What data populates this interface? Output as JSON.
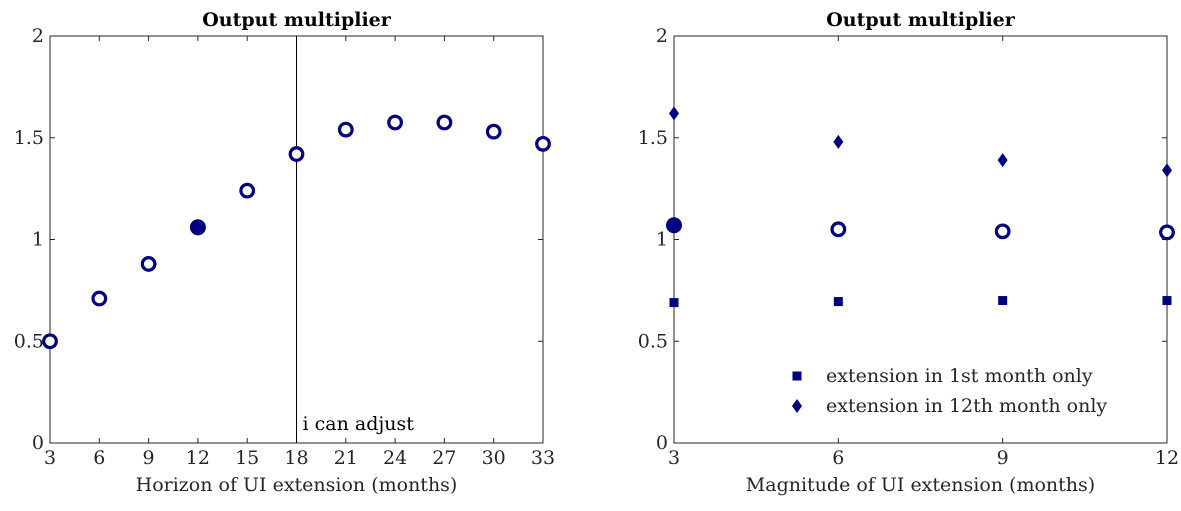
{
  "marker_color": "#000080",
  "chart_data": [
    {
      "type": "scatter",
      "title": "Output multiplier",
      "xlabel": "Horizon of UI extension (months)",
      "ylabel": "",
      "xlim": [
        3,
        33
      ],
      "ylim": [
        0,
        2
      ],
      "xticks": [
        "3",
        "6",
        "9",
        "12",
        "15",
        "18",
        "21",
        "24",
        "27",
        "30",
        "33"
      ],
      "yticks": [
        "0",
        "0.5",
        "1",
        "1.5",
        "2"
      ],
      "grid": false,
      "series": [
        {
          "marker": "hollow-circle",
          "x": [
            3,
            6,
            9,
            15,
            18,
            21,
            24,
            27,
            30,
            33
          ],
          "y": [
            0.5,
            0.71,
            0.88,
            1.24,
            1.42,
            1.54,
            1.575,
            1.575,
            1.53,
            1.47
          ]
        },
        {
          "marker": "filled-circle",
          "x": [
            12
          ],
          "y": [
            1.06
          ]
        }
      ],
      "vline": {
        "x": 18,
        "label": "i can adjust"
      }
    },
    {
      "type": "scatter",
      "title": "Output multiplier",
      "xlabel": "Magnitude of UI extension (months)",
      "ylabel": "",
      "xlim": [
        3,
        12
      ],
      "ylim": [
        0,
        2
      ],
      "xticks": [
        "3",
        "6",
        "9",
        "12"
      ],
      "yticks": [
        "0",
        "0.5",
        "1",
        "1.5",
        "2"
      ],
      "grid": false,
      "legend_position": "bottom-right",
      "series": [
        {
          "marker": "filled-circle",
          "x": [
            3
          ],
          "y": [
            1.07
          ]
        },
        {
          "marker": "hollow-circle",
          "x": [
            6,
            9,
            12
          ],
          "y": [
            1.05,
            1.04,
            1.035
          ]
        },
        {
          "name": "extension in 1st month only",
          "marker": "square",
          "x": [
            3,
            6,
            9,
            12
          ],
          "y": [
            0.69,
            0.695,
            0.7,
            0.7
          ]
        },
        {
          "name": "extension in 12th month only",
          "marker": "diamond",
          "x": [
            3,
            6,
            9,
            12
          ],
          "y": [
            1.62,
            1.48,
            1.39,
            1.34
          ]
        }
      ]
    }
  ]
}
